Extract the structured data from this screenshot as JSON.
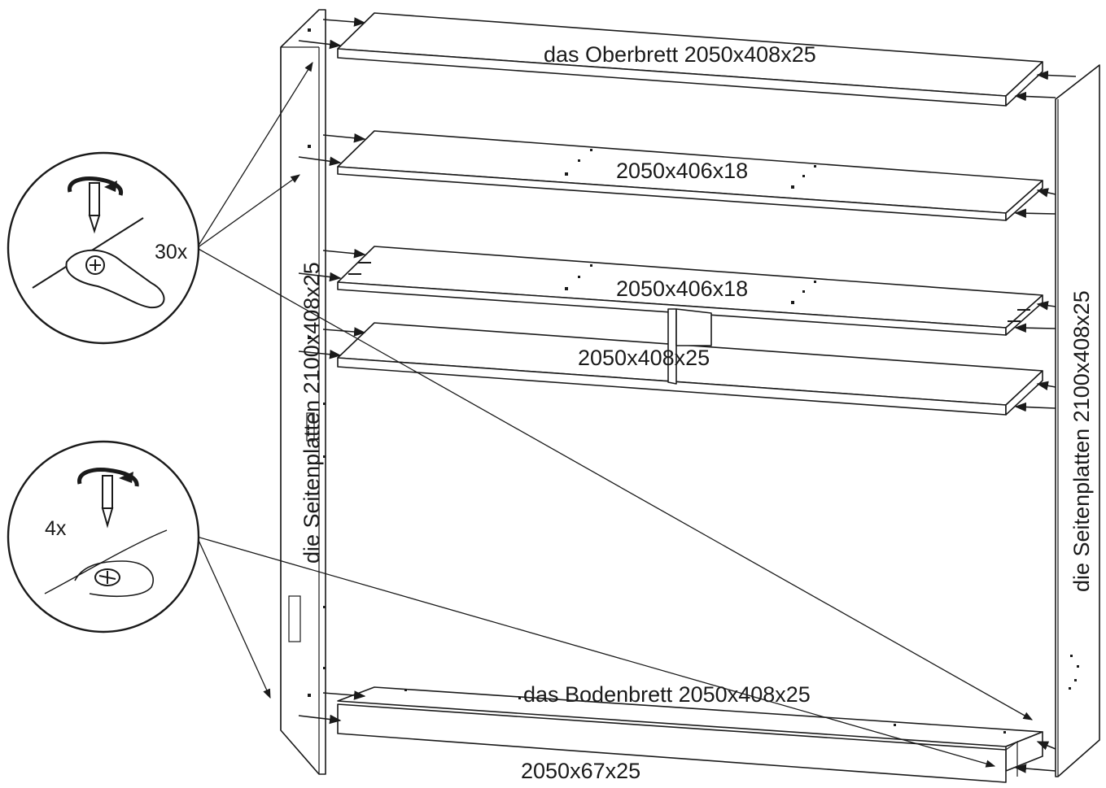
{
  "labels": {
    "top_board": "das Oberbrett 2050x408x25",
    "shelf_1": "2050x406x18",
    "shelf_2": "2050x406x18",
    "middle_board": "2050x408x25",
    "bottom_board": "das Bodenbrett 2050x408x25",
    "plinth": "2050x67x25",
    "left_side": "die Seitenplatten 2100x408x25",
    "right_side": "die Seitenplatten 2100x408x25"
  },
  "details": {
    "cam_lock_count": "30x",
    "screw_count": "4x"
  },
  "icons": {
    "cam_lock_detail": "screwdriver-cam-lock-icon",
    "screw_detail": "screwdriver-screw-icon"
  }
}
